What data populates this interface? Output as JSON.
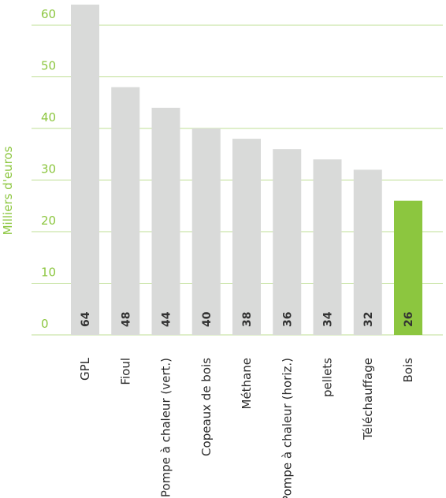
{
  "chart_data": {
    "type": "bar",
    "ylabel": "Milliers d'euros",
    "ylim": [
      0,
      60
    ],
    "yticks": [
      0,
      10,
      20,
      30,
      40,
      50,
      60
    ],
    "grid": true,
    "categories": [
      "GPL",
      "Fioul",
      "Pompe à chaleur (vert.)",
      "Copeaux de bois",
      "Méthane",
      "Pompe à chaleur (horiz.)",
      "pellets",
      "Téléchauffage",
      "Bois"
    ],
    "values": [
      64,
      48,
      44,
      40,
      38,
      36,
      34,
      32,
      26
    ],
    "highlight_index": 8,
    "colors": {
      "bar": "#d9dad9",
      "highlight": "#8cc63f",
      "axis_text": "#8cc63f",
      "category_text": "#2b2b2b",
      "value_text": "#333333"
    }
  }
}
